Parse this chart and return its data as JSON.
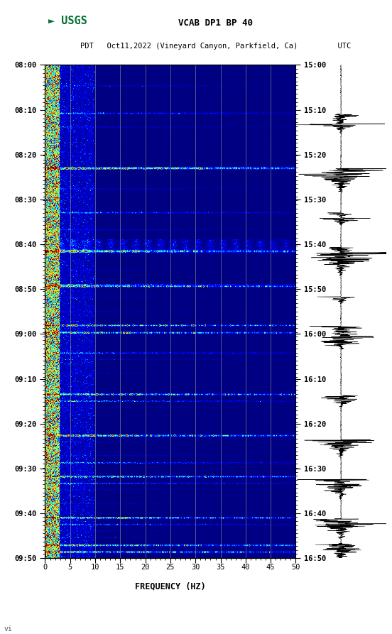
{
  "title_line1": "VCAB DP1 BP 40",
  "title_line2": "PDT   Oct11,2022 (Vineyard Canyon, Parkfield, Ca)         UTC",
  "xlabel": "FREQUENCY (HZ)",
  "freq_min": 0,
  "freq_max": 50,
  "freq_ticks": [
    0,
    5,
    10,
    15,
    20,
    25,
    30,
    35,
    40,
    45,
    50
  ],
  "time_labels_left": [
    "08:00",
    "08:10",
    "08:20",
    "08:30",
    "08:40",
    "08:50",
    "09:00",
    "09:10",
    "09:20",
    "09:30",
    "09:40",
    "09:50"
  ],
  "time_labels_right": [
    "15:00",
    "15:10",
    "15:20",
    "15:30",
    "15:40",
    "15:50",
    "16:00",
    "16:10",
    "16:20",
    "16:30",
    "16:40",
    "16:50"
  ],
  "n_time_rows": 720,
  "n_freq_cols": 500,
  "background_color": "#ffffff",
  "colormap": "jet",
  "vgrid_color": "#888888",
  "vgrid_freqs": [
    5,
    10,
    15,
    20,
    25,
    30,
    35,
    40,
    45
  ],
  "usgs_color": "#007030",
  "fig_width": 5.52,
  "fig_height": 8.93,
  "event_rows": [
    70,
    71,
    150,
    151,
    152,
    215,
    216,
    270,
    271,
    272,
    273,
    320,
    321,
    322,
    323,
    380,
    390,
    391,
    420,
    421,
    480,
    481,
    490,
    491,
    540,
    541,
    542,
    580,
    581,
    600,
    601,
    610,
    611,
    660,
    661,
    670,
    671,
    700,
    701,
    710,
    711
  ],
  "wide_event_rows": [
    150,
    151,
    272,
    323,
    380,
    391,
    481,
    541,
    601,
    661,
    701,
    711
  ],
  "medium_rows": [
    30,
    31,
    90,
    91,
    180,
    181,
    240,
    241,
    300,
    340,
    360,
    430,
    450,
    500,
    550,
    570,
    620,
    640,
    680,
    690
  ],
  "wave_events": [
    0.1,
    0.12,
    0.21,
    0.22,
    0.3,
    0.31,
    0.37,
    0.38,
    0.39,
    0.47,
    0.53,
    0.54,
    0.55,
    0.56,
    0.67,
    0.68,
    0.76,
    0.77,
    0.84,
    0.85,
    0.92,
    0.93,
    0.97,
    0.98
  ]
}
